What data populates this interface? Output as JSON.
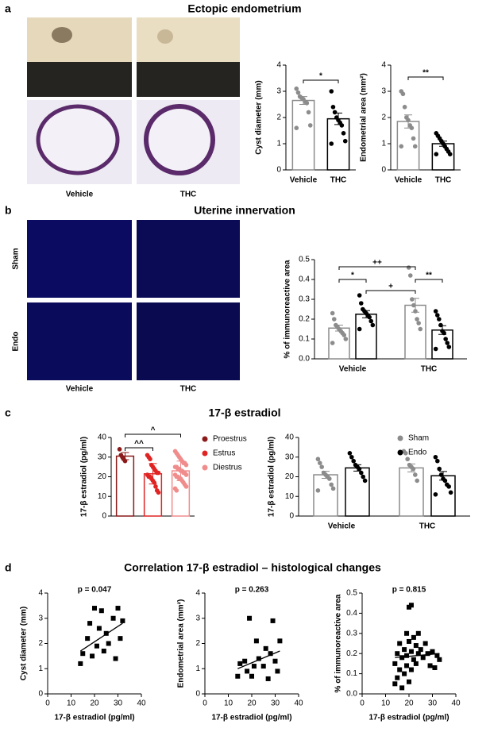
{
  "panels": [
    {
      "label": "a",
      "title": "Ectopic endometrium"
    },
    {
      "label": "b",
      "title": "Uterine innervation"
    },
    {
      "label": "c",
      "title": "17-β estradiol"
    },
    {
      "label": "d",
      "title": "Correlation 17-β estradiol – histological changes"
    }
  ],
  "image_labels": {
    "a_columns": [
      "Vehicle",
      "THC"
    ],
    "b_columns": [
      "Vehicle",
      "THC"
    ],
    "b_rows": [
      "Sham",
      "Endo"
    ]
  },
  "chart_data": [
    {
      "type": "bar",
      "ylabel": "Cyst diameter (mm)",
      "categories": [
        "Vehicle",
        "THC"
      ],
      "values": [
        2.65,
        1.95
      ],
      "errors": [
        0.15,
        0.22
      ],
      "colors": [
        "#8c8c8c",
        "#000000"
      ],
      "points": [
        [
          3.1,
          2.95,
          2.8,
          2.75,
          2.7,
          2.6,
          2.55,
          2.2,
          1.7,
          1.6
        ],
        [
          3.0,
          2.4,
          2.2,
          2.0,
          1.9,
          1.8,
          1.7,
          1.4,
          1.1,
          1.0
        ]
      ],
      "ylim": [
        0,
        4
      ],
      "yticks": [
        0,
        1,
        2,
        3,
        4
      ],
      "annotations": [
        {
          "text": "*",
          "between": [
            0,
            1
          ]
        }
      ]
    },
    {
      "type": "bar",
      "ylabel": "Endometrial area (mm²)",
      "categories": [
        "Vehicle",
        "THC"
      ],
      "values": [
        1.85,
        1.0
      ],
      "errors": [
        0.25,
        0.1
      ],
      "colors": [
        "#8c8c8c",
        "#000000"
      ],
      "points": [
        [
          3.0,
          2.9,
          2.4,
          2.0,
          1.9,
          1.7,
          1.6,
          1.2,
          0.9,
          0.9
        ],
        [
          1.4,
          1.3,
          1.2,
          1.1,
          1.0,
          0.9,
          0.8,
          0.7,
          0.6,
          0.6
        ]
      ],
      "ylim": [
        0,
        4
      ],
      "yticks": [
        0,
        1,
        2,
        3,
        4
      ],
      "annotations": [
        {
          "text": "**",
          "between": [
            0,
            1
          ]
        }
      ]
    },
    {
      "type": "grouped_bar",
      "ylabel": "% of immunoreactive area",
      "categories": [
        "Vehicle",
        "THC"
      ],
      "series": [
        {
          "name": "Sham",
          "color": "#8c8c8c",
          "values": [
            0.155,
            0.27
          ],
          "errors": [
            0.015,
            0.035
          ],
          "points": [
            [
              0.23,
              0.2,
              0.17,
              0.16,
              0.15,
              0.14,
              0.13,
              0.12,
              0.1,
              0.08
            ],
            [
              0.46,
              0.42,
              0.3,
              0.27,
              0.24,
              0.2,
              0.18,
              0.15
            ]
          ]
        },
        {
          "name": "Endo",
          "color": "#000000",
          "values": [
            0.225,
            0.145
          ],
          "errors": [
            0.018,
            0.022
          ],
          "points": [
            [
              0.32,
              0.28,
              0.25,
              0.24,
              0.23,
              0.22,
              0.21,
              0.19,
              0.17,
              0.15
            ],
            [
              0.24,
              0.22,
              0.2,
              0.17,
              0.14,
              0.13,
              0.1,
              0.08,
              0.06,
              0.05
            ]
          ]
        }
      ],
      "ylim": [
        0,
        0.5
      ],
      "yticks": [
        {
          "value": 0,
          "label": "0.0"
        },
        0.1,
        0.2,
        0.3,
        0.4,
        0.5
      ],
      "annotations": [
        {
          "text": "*",
          "between": [
            [
              0,
              0
            ],
            [
              0,
              1
            ]
          ]
        },
        {
          "text": "++",
          "between": [
            [
              0,
              0
            ],
            [
              1,
              0
            ]
          ]
        },
        {
          "text": "+",
          "between": [
            [
              0,
              1
            ],
            [
              1,
              0
            ]
          ]
        },
        {
          "text": "**",
          "between": [
            [
              1,
              0
            ],
            [
              1,
              1
            ]
          ]
        }
      ]
    },
    {
      "type": "bar",
      "ylabel": "17-β estradiol (pg/ml)",
      "categories": [
        "Proestrus",
        "Estrus",
        "Diestrus"
      ],
      "values": [
        30.5,
        21.5,
        23
      ],
      "errors": [
        1.8,
        5.2,
        5.0
      ],
      "colors": [
        "#8b1a1a",
        "#e02424",
        "#f08c8c"
      ],
      "legend": true,
      "category_labels": false,
      "points": [
        [
          34,
          31,
          30,
          29,
          28
        ],
        [
          31,
          30,
          29,
          26,
          25,
          24,
          23,
          22,
          22,
          21,
          20,
          20,
          19,
          18,
          17,
          15,
          13,
          12
        ],
        [
          33,
          32,
          31,
          30,
          29,
          28,
          27,
          27,
          26,
          25,
          25,
          24,
          24,
          23,
          23,
          22,
          22,
          21,
          21,
          20,
          20,
          19,
          19,
          18,
          17,
          16,
          15,
          14,
          13
        ]
      ],
      "ylim": [
        0,
        40
      ],
      "yticks": [
        0,
        10,
        20,
        30,
        40
      ],
      "annotations": [
        {
          "text": "^^",
          "between": [
            0,
            1
          ]
        },
        {
          "text": "^",
          "between": [
            0,
            2
          ]
        }
      ]
    },
    {
      "type": "grouped_bar",
      "ylabel": "17-β estradiol (pg/ml)",
      "categories": [
        "Vehicle",
        "THC"
      ],
      "legend": true,
      "series": [
        {
          "name": "Sham",
          "color": "#8c8c8c",
          "values": [
            21,
            24.5
          ],
          "errors": [
            1.8,
            2.0
          ],
          "points": [
            [
              29,
              27,
              25,
              22,
              21,
              20,
              19,
              16,
              14,
              13
            ],
            [
              33,
              32,
              29,
              26,
              25,
              24,
              21,
              18
            ]
          ]
        },
        {
          "name": "Endo",
          "color": "#000000",
          "values": [
            24.5,
            20.5
          ],
          "errors": [
            1.6,
            2.2
          ],
          "points": [
            [
              32,
              30,
              28,
              26,
              25,
              24,
              22,
              20,
              18
            ],
            [
              30,
              28,
              24,
              21,
              19,
              18,
              16,
              15,
              12,
              11
            ]
          ]
        }
      ],
      "ylim": [
        0,
        40
      ],
      "yticks": [
        0,
        10,
        20,
        30,
        40
      ]
    },
    {
      "type": "scatter",
      "ylabel": "Cyst diameter (mm)",
      "xlabel": "17-β estradiol (pg/ml)",
      "annotation": "p = 0.047",
      "x": [
        14,
        15,
        17,
        18,
        19,
        20,
        21,
        22,
        23,
        24,
        25,
        26,
        28,
        29,
        30,
        31,
        32
      ],
      "y": [
        1.2,
        1.6,
        2.2,
        2.8,
        1.5,
        3.4,
        1.9,
        2.6,
        3.3,
        1.7,
        2.4,
        2.0,
        3.0,
        1.4,
        3.4,
        2.2,
        2.9
      ],
      "fit": {
        "x": [
          14,
          32
        ],
        "y": [
          1.7,
          2.8
        ]
      },
      "xlim": [
        0,
        40
      ],
      "xticks": [
        0,
        10,
        20,
        30,
        40
      ],
      "ylim": [
        0,
        4
      ],
      "yticks": [
        0,
        1,
        2,
        3,
        4
      ]
    },
    {
      "type": "scatter",
      "ylabel": "Endometrial area  (mm²)",
      "xlabel": "17-β estradiol (pg/ml)",
      "annotation": "p = 0.263",
      "x": [
        14,
        15,
        17,
        18,
        19,
        20,
        21,
        22,
        23,
        25,
        26,
        27,
        28,
        29,
        30,
        31,
        32
      ],
      "y": [
        0.7,
        1.2,
        1.3,
        0.9,
        3.0,
        0.7,
        1.1,
        2.1,
        1.4,
        1.1,
        1.8,
        0.6,
        1.6,
        2.9,
        1.3,
        0.9,
        2.1
      ],
      "fit": {
        "x": [
          14,
          32
        ],
        "y": [
          1.0,
          1.7
        ]
      },
      "xlim": [
        0,
        40
      ],
      "xticks": [
        0,
        10,
        20,
        30,
        40
      ],
      "ylim": [
        0,
        4
      ],
      "yticks": [
        0,
        1,
        2,
        3,
        4
      ]
    },
    {
      "type": "scatter",
      "ylabel": "% of immunoreactive area",
      "xlabel": "17-β estradiol (pg/ml)",
      "annotation": "p = 0.815",
      "x": [
        14,
        14,
        15,
        15,
        16,
        16,
        17,
        17,
        18,
        18,
        19,
        19,
        19,
        20,
        20,
        20,
        21,
        21,
        21,
        22,
        22,
        23,
        23,
        24,
        24,
        25,
        26,
        27,
        28,
        29,
        30,
        31,
        32,
        33
      ],
      "y": [
        0.05,
        0.15,
        0.08,
        0.2,
        0.12,
        0.25,
        0.03,
        0.18,
        0.1,
        0.22,
        0.3,
        0.14,
        0.19,
        0.43,
        0.26,
        0.06,
        0.44,
        0.21,
        0.12,
        0.28,
        0.17,
        0.24,
        0.15,
        0.3,
        0.2,
        0.22,
        0.18,
        0.25,
        0.2,
        0.14,
        0.21,
        0.13,
        0.19,
        0.17
      ],
      "fit": {
        "x": [
          14,
          33
        ],
        "y": [
          0.18,
          0.2
        ]
      },
      "xlim": [
        0,
        40
      ],
      "xticks": [
        0,
        10,
        20,
        30,
        40
      ],
      "ylim": [
        0,
        0.5
      ],
      "yticks": [
        {
          "value": 0,
          "label": "0.0"
        },
        0.1,
        0.2,
        0.3,
        0.4,
        0.5
      ]
    }
  ]
}
